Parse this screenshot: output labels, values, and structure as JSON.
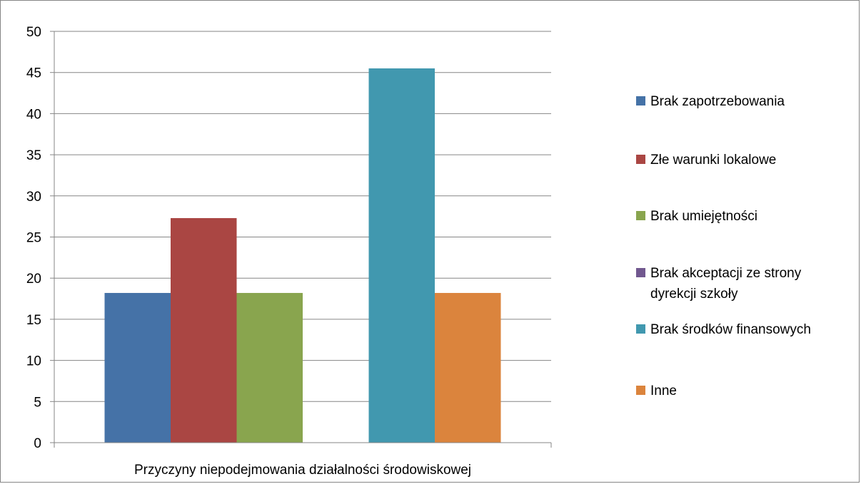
{
  "chart_data": {
    "type": "bar",
    "title": "",
    "xlabel": "",
    "ylabel": "",
    "categories": [
      "Przyczyny niepodejmowania działalności środowiskowej"
    ],
    "ylim": [
      0,
      50
    ],
    "yticks": [
      "0",
      "5",
      "10",
      "15",
      "20",
      "25",
      "30",
      "35",
      "40",
      "45",
      "50"
    ],
    "grid": true,
    "legend_position": "right",
    "series": [
      {
        "name": "Brak zapotrzebowania",
        "values": [
          18.2
        ],
        "color": "#4572A7"
      },
      {
        "name": "Złe warunki lokalowe",
        "values": [
          27.3
        ],
        "color": "#AA4643"
      },
      {
        "name": "Brak umiejętności",
        "values": [
          18.2
        ],
        "color": "#89A54E"
      },
      {
        "name": "Brak akceptacji ze strony dyrekcji szkoły",
        "legend_lines": [
          "Brak akceptacji ze strony",
          "dyrekcji szkoły"
        ],
        "values": [
          0
        ],
        "color": "#71588F"
      },
      {
        "name": "Brak środków finansowych",
        "values": [
          45.5
        ],
        "color": "#4198AF"
      },
      {
        "name": "Inne",
        "values": [
          18.2
        ],
        "color": "#DB843D"
      }
    ]
  }
}
